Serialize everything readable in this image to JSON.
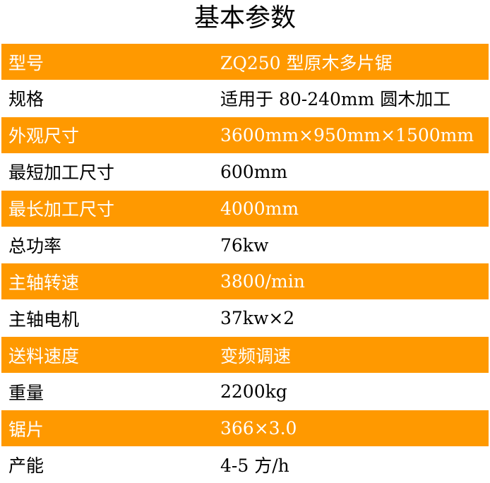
{
  "title": "基本参数",
  "rows": [
    {
      "label": "型号",
      "value": "ZQ250 型原木多片锯"
    },
    {
      "label": "规格",
      "value": "适用于 80-240mm 圆木加工"
    },
    {
      "label": "外观尺寸",
      "value": "3600mm×950mm×1500mm"
    },
    {
      "label": "最短加工尺寸",
      "value": "600mm"
    },
    {
      "label": "最长加工尺寸",
      "value": "4000mm"
    },
    {
      "label": "总功率",
      "value": "76kw"
    },
    {
      "label": "主轴转速",
      "value": "3800/min"
    },
    {
      "label": "主轴电机",
      "value": "37kw×2"
    },
    {
      "label": "送料速度",
      "value": "变频调速"
    },
    {
      "label": "重量",
      "value": "2200kg"
    },
    {
      "label": "锯片",
      "value": "366×3.0"
    },
    {
      "label": "产能",
      "value": "4-5 方/h"
    }
  ],
  "colors": {
    "highlight": "#ff9900"
  }
}
